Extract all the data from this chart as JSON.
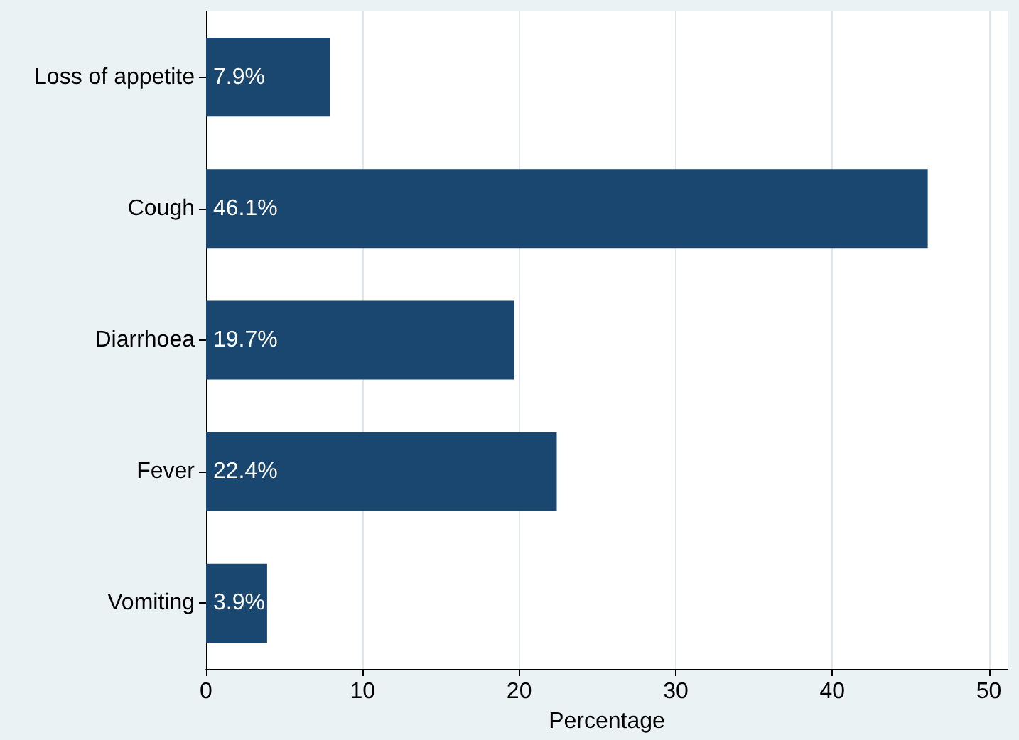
{
  "chart_data": {
    "type": "bar",
    "orientation": "horizontal",
    "categories": [
      "Loss of appetite",
      "Cough",
      "Diarrhoea",
      "Fever",
      "Vomiting"
    ],
    "values": [
      7.9,
      46.1,
      19.7,
      22.4,
      3.9
    ],
    "value_labels": [
      "7.9%",
      "46.1%",
      "19.7%",
      "22.4%",
      "3.9%"
    ],
    "color": "#1a476f",
    "xlabel": "Percentage",
    "xlim": [
      0,
      51.2
    ],
    "xticks": [
      0,
      10,
      20,
      30,
      40,
      50
    ],
    "grid": "x"
  }
}
